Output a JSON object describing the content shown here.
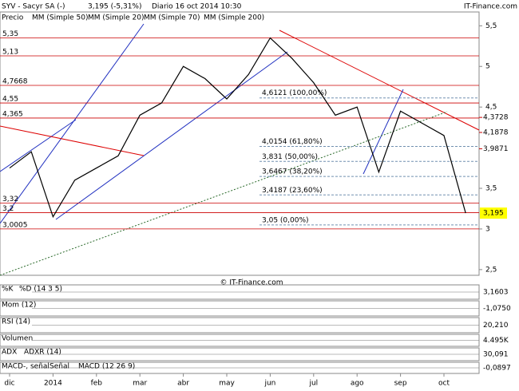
{
  "header": {
    "symbol": "SYV - Sacyr SA (-)",
    "quote": "3,195 (-5,31%)",
    "period": "Diario  16 oct 2014 10:30",
    "site": "IT-Finance.com",
    "copyright": "© IT-Finance.com",
    "legend": [
      "MM (Simple 50)",
      "MM (Simple 20)",
      "MM (Simple 70)",
      "MM (Simple 200)"
    ]
  },
  "chart_data": {
    "type": "line",
    "categories": [
      "dic",
      null,
      "2014",
      null,
      "feb",
      null,
      "mar",
      null,
      "abr",
      null,
      "may",
      null,
      "jun",
      null,
      "jul",
      null,
      "ago",
      null,
      "sep",
      null,
      "oct",
      null
    ],
    "series": [
      {
        "name": "Precio",
        "color": "#000000",
        "values": [
          3.75,
          3.95,
          3.15,
          3.6,
          3.75,
          3.9,
          4.4,
          4.55,
          5.0,
          4.85,
          4.6,
          4.9,
          5.35,
          5.1,
          4.8,
          4.4,
          4.5,
          3.7,
          4.45,
          4.3,
          4.15,
          3.195
        ]
      }
    ],
    "ylim": [
      2.43,
      5.67
    ],
    "yticks": [
      {
        "value": 5.5,
        "label": "5,5"
      },
      5,
      {
        "value": 4.5,
        "label": "4,5"
      },
      {
        "value": 3.5,
        "label": "3,5"
      },
      3,
      {
        "value": 2.5,
        "label": "2,5"
      }
    ],
    "levels": [
      {
        "value": 5.35,
        "label": "5,35"
      },
      {
        "value": 5.13,
        "label": "5,13"
      },
      {
        "value": 4.7668,
        "label": "4,7668"
      },
      {
        "value": 4.55,
        "label": "4,55"
      },
      {
        "value": 4.365,
        "label": "4,365"
      },
      {
        "value": 3.32,
        "label": "3,32"
      },
      {
        "value": 3.2,
        "label": "3,2"
      },
      {
        "value": 3.0005,
        "label": "3,0005"
      }
    ],
    "fibonacci": [
      {
        "value": 4.6121,
        "label": "4,6121 (100,00%)"
      },
      {
        "value": 4.0154,
        "label": "4,0154 (61,80%)"
      },
      {
        "value": 3.831,
        "label": "3,831 (50,00%)"
      },
      {
        "value": 3.6467,
        "label": "3,6467 (38,20%)"
      },
      {
        "value": 3.4187,
        "label": "3,4187 (23,60%)"
      },
      {
        "value": 3.05,
        "label": "3,05 (0,00%)"
      }
    ],
    "right_labels": [
      {
        "value": 4.3728,
        "label": "4,3728"
      },
      {
        "value": 4.1878,
        "label": "4,1878"
      },
      {
        "value": 3.9871,
        "label": "3,9871"
      }
    ],
    "last": {
      "value": 3.195,
      "label": "3,195"
    },
    "indicators": [
      {
        "name": "%K",
        "extra": "%D (14 3 5)",
        "value": "3,1603"
      },
      {
        "name": "Mom (12)",
        "value": "-1,0750"
      },
      {
        "name": "RSI (14)",
        "value": "20,210"
      },
      {
        "name": "Volumen",
        "value": "4.495K"
      },
      {
        "name": "ADX",
        "extra": "ADXR (14)",
        "value": "30,091"
      },
      {
        "name": "MACD-, señal",
        "extra": "Señal",
        "extra2": "MACD (12 26 9)",
        "value": "-0,0897"
      }
    ]
  }
}
